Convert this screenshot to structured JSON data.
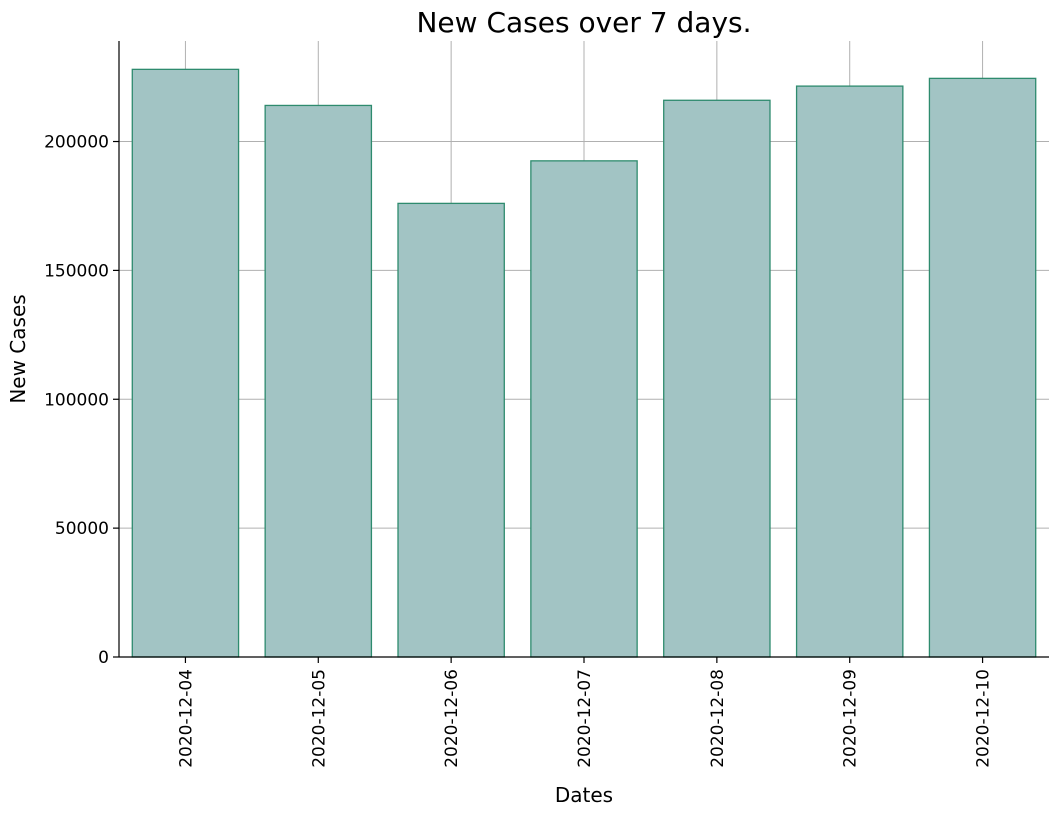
{
  "chart_data": {
    "type": "bar",
    "title": "New Cases over 7 days.",
    "xlabel": "Dates",
    "ylabel": "New Cases",
    "categories": [
      "2020-12-04",
      "2020-12-05",
      "2020-12-06",
      "2020-12-07",
      "2020-12-08",
      "2020-12-09",
      "2020-12-10"
    ],
    "values": [
      228000,
      214000,
      176000,
      192500,
      216000,
      221500,
      224500
    ],
    "ylim": [
      0,
      239000
    ],
    "yticks": [
      0,
      50000,
      100000,
      150000,
      200000
    ],
    "ytick_labels": [
      "0",
      "50000",
      "100000",
      "150000",
      "200000"
    ],
    "grid": true,
    "legend": "none",
    "colors": {
      "bar_fill": "#a2c4c4",
      "bar_edge": "#2e8b6e"
    }
  }
}
